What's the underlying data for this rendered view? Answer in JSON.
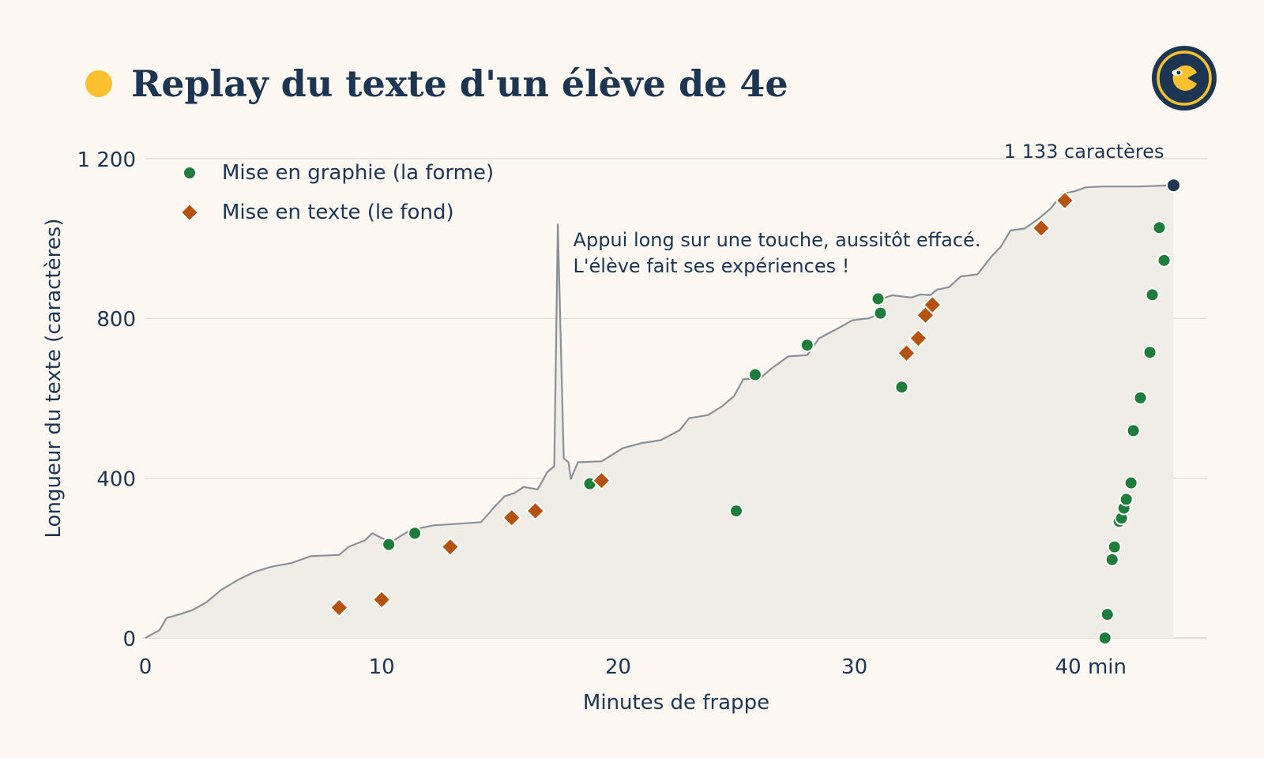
{
  "header": {
    "title": "Replay du texte d'un élève de 4e",
    "logo_icon": "logo-face-icon"
  },
  "colors": {
    "background": "#fdf8f1",
    "text": "#1c3553",
    "accent": "#fbc02d",
    "line": "#8a909a",
    "area": "#f0ede6",
    "grid": "#e3e0da",
    "graphie": "#1e7d3a",
    "texte": "#b5520d",
    "end_point": "#1c3553"
  },
  "chart_data": {
    "type": "scatter",
    "xlabel": "Minutes de frappe",
    "ylabel": "Longueur du texte (caractères)",
    "xlim": [
      0,
      45
    ],
    "ylim": [
      0,
      1200
    ],
    "x_ticks": [
      {
        "value": 0,
        "label": "0"
      },
      {
        "value": 10,
        "label": "10"
      },
      {
        "value": 20,
        "label": "20"
      },
      {
        "value": 30,
        "label": "30"
      },
      {
        "value": 40,
        "label": "40 min"
      }
    ],
    "y_ticks": [
      {
        "value": 0,
        "label": "0"
      },
      {
        "value": 400,
        "label": "400"
      },
      {
        "value": 800,
        "label": "800"
      },
      {
        "value": 1200,
        "label": "1 200"
      }
    ],
    "grid": "horizontal",
    "legend_position": "top-left",
    "text_length": {
      "name": "Longueur du texte",
      "points": [
        [
          0,
          0
        ],
        [
          0.3,
          10
        ],
        [
          0.6,
          20
        ],
        [
          0.9,
          50
        ],
        [
          1.5,
          60
        ],
        [
          2.0,
          70
        ],
        [
          2.6,
          90
        ],
        [
          3.2,
          120
        ],
        [
          3.9,
          145
        ],
        [
          4.6,
          165
        ],
        [
          5.3,
          178
        ],
        [
          6.2,
          188
        ],
        [
          7.0,
          205
        ],
        [
          8.2,
          208
        ],
        [
          8.6,
          228
        ],
        [
          9.3,
          245
        ],
        [
          9.6,
          262
        ],
        [
          10.0,
          250
        ],
        [
          10.4,
          240
        ],
        [
          11.2,
          270
        ],
        [
          12.2,
          282
        ],
        [
          13.0,
          285
        ],
        [
          14.2,
          290
        ],
        [
          14.8,
          330
        ],
        [
          15.2,
          355
        ],
        [
          15.6,
          362
        ],
        [
          16.0,
          378
        ],
        [
          16.6,
          372
        ],
        [
          17.0,
          415
        ],
        [
          17.3,
          430
        ],
        [
          17.45,
          1035
        ],
        [
          17.7,
          450
        ],
        [
          17.9,
          440
        ],
        [
          18.0,
          398
        ],
        [
          18.3,
          440
        ],
        [
          19.3,
          442
        ],
        [
          20.2,
          475
        ],
        [
          21.0,
          488
        ],
        [
          21.8,
          495
        ],
        [
          22.6,
          520
        ],
        [
          23.0,
          550
        ],
        [
          23.8,
          558
        ],
        [
          24.4,
          580
        ],
        [
          24.9,
          605
        ],
        [
          25.3,
          648
        ],
        [
          26.0,
          650
        ],
        [
          26.5,
          675
        ],
        [
          27.2,
          705
        ],
        [
          28.0,
          708
        ],
        [
          28.5,
          750
        ],
        [
          29.3,
          775
        ],
        [
          29.9,
          795
        ],
        [
          30.6,
          800
        ],
        [
          31.0,
          810
        ],
        [
          31.2,
          850
        ],
        [
          31.6,
          858
        ],
        [
          32.4,
          852
        ],
        [
          32.8,
          860
        ],
        [
          33.2,
          858
        ],
        [
          33.5,
          872
        ],
        [
          34.0,
          878
        ],
        [
          34.5,
          905
        ],
        [
          35.2,
          910
        ],
        [
          35.8,
          955
        ],
        [
          36.2,
          980
        ],
        [
          36.6,
          1020
        ],
        [
          37.2,
          1025
        ],
        [
          37.8,
          1050
        ],
        [
          38.3,
          1075
        ],
        [
          38.8,
          1112
        ],
        [
          39.3,
          1118
        ],
        [
          39.8,
          1128
        ],
        [
          40.5,
          1130
        ],
        [
          42.0,
          1130
        ],
        [
          43.5,
          1133
        ]
      ]
    },
    "end_point": {
      "x": 43.5,
      "y": 1133,
      "label": "1 133 caractères"
    },
    "series": [
      {
        "name": "Mise en graphie (la forme)",
        "marker": "circle",
        "points": [
          [
            10.3,
            234
          ],
          [
            11.4,
            262
          ],
          [
            18.8,
            386
          ],
          [
            25.0,
            318
          ],
          [
            25.8,
            659
          ],
          [
            28.0,
            733
          ],
          [
            31.0,
            849
          ],
          [
            31.1,
            813
          ],
          [
            32.0,
            628
          ],
          [
            40.6,
            0
          ],
          [
            40.7,
            59
          ],
          [
            40.9,
            196
          ],
          [
            41.0,
            228
          ],
          [
            41.2,
            292
          ],
          [
            41.3,
            300
          ],
          [
            41.4,
            325
          ],
          [
            41.5,
            347
          ],
          [
            41.7,
            388
          ],
          [
            41.8,
            519
          ],
          [
            42.1,
            601
          ],
          [
            42.5,
            715
          ],
          [
            42.6,
            859
          ],
          [
            42.9,
            1027
          ],
          [
            43.1,
            945
          ]
        ]
      },
      {
        "name": "Mise en texte (le fond)",
        "marker": "diamond",
        "points": [
          [
            8.2,
            76
          ],
          [
            10.0,
            96
          ],
          [
            12.9,
            228
          ],
          [
            15.5,
            301
          ],
          [
            16.5,
            318
          ],
          [
            19.3,
            394
          ],
          [
            32.2,
            713
          ],
          [
            32.7,
            750
          ],
          [
            33.0,
            808
          ],
          [
            33.3,
            834
          ],
          [
            37.9,
            1026
          ],
          [
            38.9,
            1095
          ]
        ]
      }
    ],
    "annotation": {
      "lines": [
        "Appui long sur une touche, aussitôt effacé.",
        "L'élève fait ses expériences !"
      ],
      "x": 18.1,
      "y": 1000
    }
  }
}
